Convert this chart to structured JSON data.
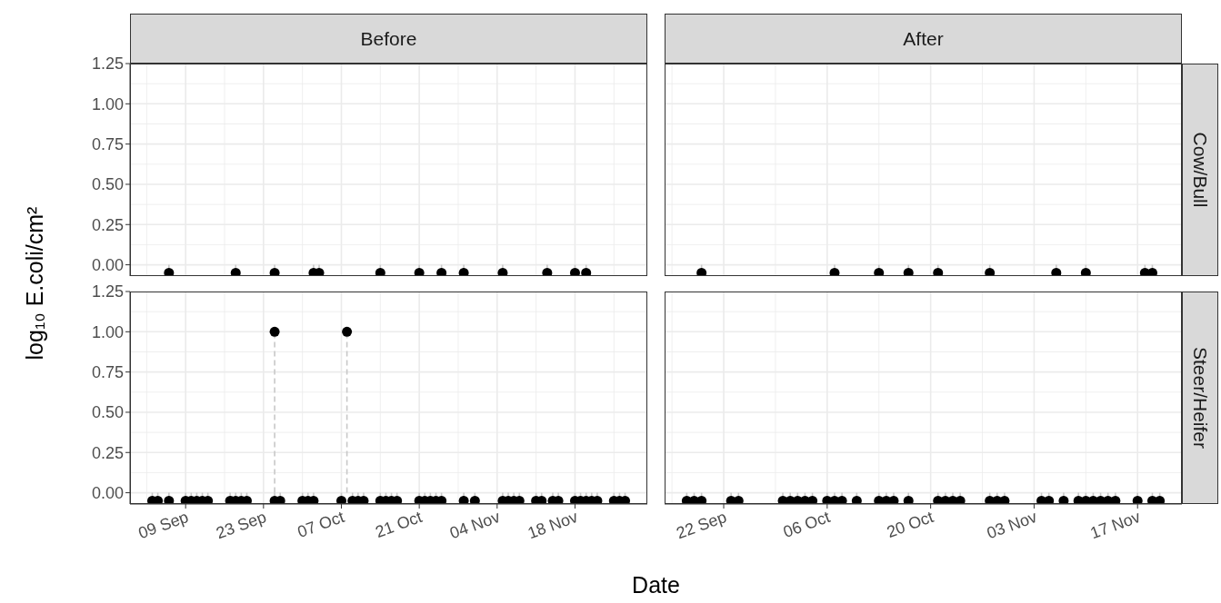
{
  "chart_data": [
    {
      "type": "lollipop",
      "title": "Before",
      "ylabel": "log₁₀ E.coli/cm²",
      "color": "#000000",
      "marker": "circle",
      "line_style": "dashed",
      "grid": true,
      "tick_labels": "y",
      "x": [
        "--09-06",
        "--09-18",
        "--09-25",
        "--10-02",
        "--10-03",
        "--10-14",
        "--10-21",
        "--10-25",
        "--10-29",
        "--11-05",
        "--11-13",
        "--11-18",
        "--11-20"
      ],
      "values": [
        -0.05,
        -0.05,
        -0.05,
        -0.05,
        -0.05,
        -0.05,
        -0.05,
        -0.05,
        -0.05,
        -0.05,
        -0.05,
        -0.05,
        -0.05
      ],
      "xlim": [
        "--08-30",
        "--12-01"
      ],
      "xticks": [
        "--09-09",
        "--09-23",
        "--10-07",
        "--10-21",
        "--11-04",
        "--11-18"
      ],
      "ylim": [
        -0.07,
        1.25
      ],
      "yticks": [
        {
          "value": 0,
          "label": "0.00"
        },
        {
          "value": 0.25,
          "label": "0.25"
        },
        {
          "value": 0.5,
          "label": "0.50"
        },
        {
          "value": 0.75,
          "label": "0.75"
        },
        {
          "value": 1,
          "label": "1.00"
        },
        {
          "value": 1.25,
          "label": "1.25"
        }
      ]
    },
    {
      "type": "lollipop",
      "title": "After",
      "y2label": "Cow/Bull",
      "color": "#000000",
      "marker": "circle",
      "line_style": "dashed",
      "grid": true,
      "tick_labels": false,
      "x": [
        "--09-19",
        "--10-07",
        "--10-13",
        "--10-17",
        "--10-21",
        "--10-28",
        "--11-06",
        "--11-10",
        "--11-18",
        "--11-19"
      ],
      "values": [
        -0.05,
        -0.05,
        -0.05,
        -0.05,
        -0.05,
        -0.05,
        -0.05,
        -0.05,
        -0.05,
        -0.05
      ],
      "xlim": [
        "--09-14",
        "--11-23"
      ],
      "xticks": [
        "--09-22",
        "--10-06",
        "--10-20",
        "--11-03",
        "--11-17"
      ],
      "ylim": [
        -0.07,
        1.25
      ],
      "yticks": [
        0,
        0.25,
        0.5,
        0.75,
        1,
        1.25
      ]
    },
    {
      "type": "lollipop",
      "xlabel": "Date",
      "color": "#000000",
      "marker": "circle",
      "line_style": "dashed",
      "grid": true,
      "x": [
        "--09-03",
        "--09-04",
        "--09-06",
        "--09-09",
        "--09-10",
        "--09-11",
        "--09-12",
        "--09-13",
        "--09-17",
        "--09-18",
        "--09-19",
        "--09-20",
        "--09-25",
        "--09-25",
        "--09-26",
        "--09-30",
        "--10-01",
        "--10-02",
        "--10-07",
        "--10-08",
        "--10-09",
        "--10-10",
        "--10-11",
        "--10-14",
        "--10-15",
        "--10-16",
        "--10-17",
        "--10-21",
        "--10-22",
        "--10-23",
        "--10-24",
        "--10-25",
        "--10-29",
        "--10-31",
        "--11-05",
        "--11-06",
        "--11-07",
        "--11-08",
        "--11-11",
        "--11-12",
        "--11-14",
        "--11-15",
        "--11-18",
        "--11-19",
        "--11-20",
        "--11-21",
        "--11-22",
        "--11-25",
        "--11-26",
        "--11-27"
      ],
      "values": [
        -0.05,
        -0.05,
        -0.05,
        -0.05,
        -0.05,
        -0.05,
        -0.05,
        -0.05,
        -0.05,
        -0.05,
        -0.05,
        -0.05,
        -0.05,
        1,
        -0.05,
        -0.05,
        -0.05,
        -0.05,
        -0.05,
        1,
        -0.05,
        -0.05,
        -0.05,
        -0.05,
        -0.05,
        -0.05,
        -0.05,
        -0.05,
        -0.05,
        -0.05,
        -0.05,
        -0.05,
        -0.05,
        -0.05,
        -0.05,
        -0.05,
        -0.05,
        -0.05,
        -0.05,
        -0.05,
        -0.05,
        -0.05,
        -0.05,
        -0.05,
        -0.05,
        -0.05,
        -0.05,
        -0.05,
        -0.05,
        -0.05
      ],
      "xlim": [
        "--08-30",
        "--12-01"
      ],
      "xticks": [
        {
          "value": "--09-09",
          "label": "09 Sep"
        },
        {
          "value": "--09-23",
          "label": "23 Sep"
        },
        {
          "value": "--10-07",
          "label": "07 Oct"
        },
        {
          "value": "--10-21",
          "label": "21 Oct"
        },
        {
          "value": "--11-04",
          "label": "04 Nov"
        },
        {
          "value": "--11-18",
          "label": "18 Nov"
        }
      ],
      "ylim": [
        -0.07,
        1.25
      ],
      "yticks": [
        {
          "value": 0,
          "label": "0.00"
        },
        {
          "value": 0.25,
          "label": "0.25"
        },
        {
          "value": 0.5,
          "label": "0.50"
        },
        {
          "value": 0.75,
          "label": "0.75"
        },
        {
          "value": 1,
          "label": "1.00"
        },
        {
          "value": 1.25,
          "label": "1.25"
        }
      ]
    },
    {
      "type": "lollipop",
      "y2label": "Steer/Heifer",
      "color": "#000000",
      "marker": "circle",
      "line_style": "dashed",
      "grid": true,
      "tick_labels": "x",
      "x": [
        "--09-17",
        "--09-18",
        "--09-19",
        "--09-23",
        "--09-24",
        "--09-30",
        "--10-01",
        "--10-02",
        "--10-03",
        "--10-04",
        "--10-06",
        "--10-07",
        "--10-08",
        "--10-10",
        "--10-13",
        "--10-14",
        "--10-15",
        "--10-17",
        "--10-21",
        "--10-22",
        "--10-23",
        "--10-24",
        "--10-28",
        "--10-29",
        "--10-30",
        "--11-04",
        "--11-05",
        "--11-07",
        "--11-09",
        "--11-10",
        "--11-11",
        "--11-12",
        "--11-13",
        "--11-14",
        "--11-17",
        "--11-19",
        "--11-20"
      ],
      "values": [
        -0.05,
        -0.05,
        -0.05,
        -0.05,
        -0.05,
        -0.05,
        -0.05,
        -0.05,
        -0.05,
        -0.05,
        -0.05,
        -0.05,
        -0.05,
        -0.05,
        -0.05,
        -0.05,
        -0.05,
        -0.05,
        -0.05,
        -0.05,
        -0.05,
        -0.05,
        -0.05,
        -0.05,
        -0.05,
        -0.05,
        -0.05,
        -0.05,
        -0.05,
        -0.05,
        -0.05,
        -0.05,
        -0.05,
        -0.05,
        -0.05,
        -0.05,
        -0.05
      ],
      "xlim": [
        "--09-14",
        "--11-23"
      ],
      "xticks": [
        {
          "value": "--09-22",
          "label": "22 Sep"
        },
        {
          "value": "--10-06",
          "label": "06 Oct"
        },
        {
          "value": "--10-20",
          "label": "20 Oct"
        },
        {
          "value": "--11-03",
          "label": "03 Nov"
        },
        {
          "value": "--11-17",
          "label": "17 Nov"
        }
      ],
      "ylim": [
        -0.07,
        1.25
      ],
      "yticks": [
        0,
        0.25,
        0.5,
        0.75,
        1,
        1.25
      ]
    }
  ]
}
